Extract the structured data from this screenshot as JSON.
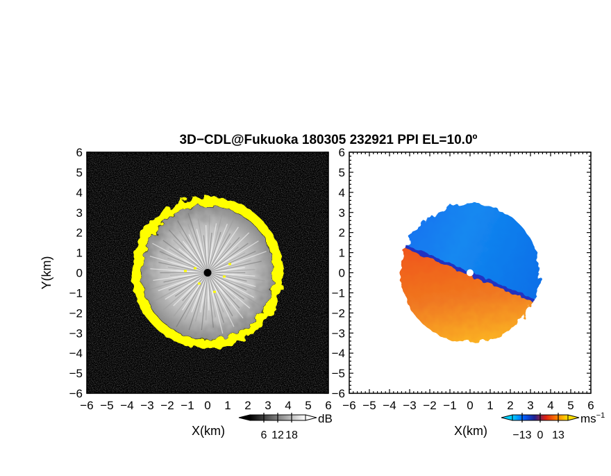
{
  "title": "3D−CDL@Fukuoka 180305 232921 PPI EL=10.0º",
  "chart_data": [
    {
      "type": "heatmap",
      "field": "backscatter intensity",
      "xlabel": "X(km)",
      "ylabel": "Y(km)",
      "xlim": [
        -6,
        6
      ],
      "ylim": [
        -6,
        6
      ],
      "xticks": [
        "−6",
        "−5",
        "−4",
        "−3",
        "−2",
        "−1",
        "0",
        "1",
        "2",
        "3",
        "4",
        "5",
        "6"
      ],
      "yticks": [
        "−6",
        "−5",
        "−4",
        "−3",
        "−2",
        "−1",
        "0",
        "1",
        "2",
        "3",
        "4",
        "5",
        "6"
      ],
      "echo_radius_km": 3.4,
      "edge_color": "#ffff00",
      "background_color": "#000000",
      "colorbar": {
        "unit": "dB",
        "ticks": [
          "6",
          "12",
          "18"
        ],
        "tick_values": [
          6,
          12,
          18
        ],
        "range": [
          0,
          24
        ],
        "colors": [
          "#000000",
          "#ffffff"
        ]
      }
    },
    {
      "type": "heatmap",
      "field": "radial velocity",
      "xlabel": "X(km)",
      "ylabel": "",
      "xlim": [
        -6,
        6
      ],
      "ylim": [
        -6,
        6
      ],
      "xticks": [
        "−6",
        "−5",
        "−4",
        "−3",
        "−2",
        "−1",
        "0",
        "1",
        "2",
        "3",
        "4",
        "5",
        "6"
      ],
      "yticks": [
        "−6",
        "−5",
        "−4",
        "−3",
        "−2",
        "−1",
        "0",
        "1",
        "2",
        "3",
        "4",
        "5",
        "6"
      ],
      "echo_radius_km": 3.4,
      "approaching_color": "#0a7cf0",
      "receding_color": "#f05018",
      "colorbar": {
        "unit": "ms",
        "unit_exponent": "−1",
        "ticks": [
          "−13",
          "0",
          "13"
        ],
        "tick_values": [
          -13,
          0,
          13
        ],
        "range": [
          -20,
          20
        ],
        "colors": [
          "#00d0ff",
          "#0060ff",
          "#202090",
          "#e02010",
          "#ff8000",
          "#ffe000"
        ]
      }
    }
  ]
}
